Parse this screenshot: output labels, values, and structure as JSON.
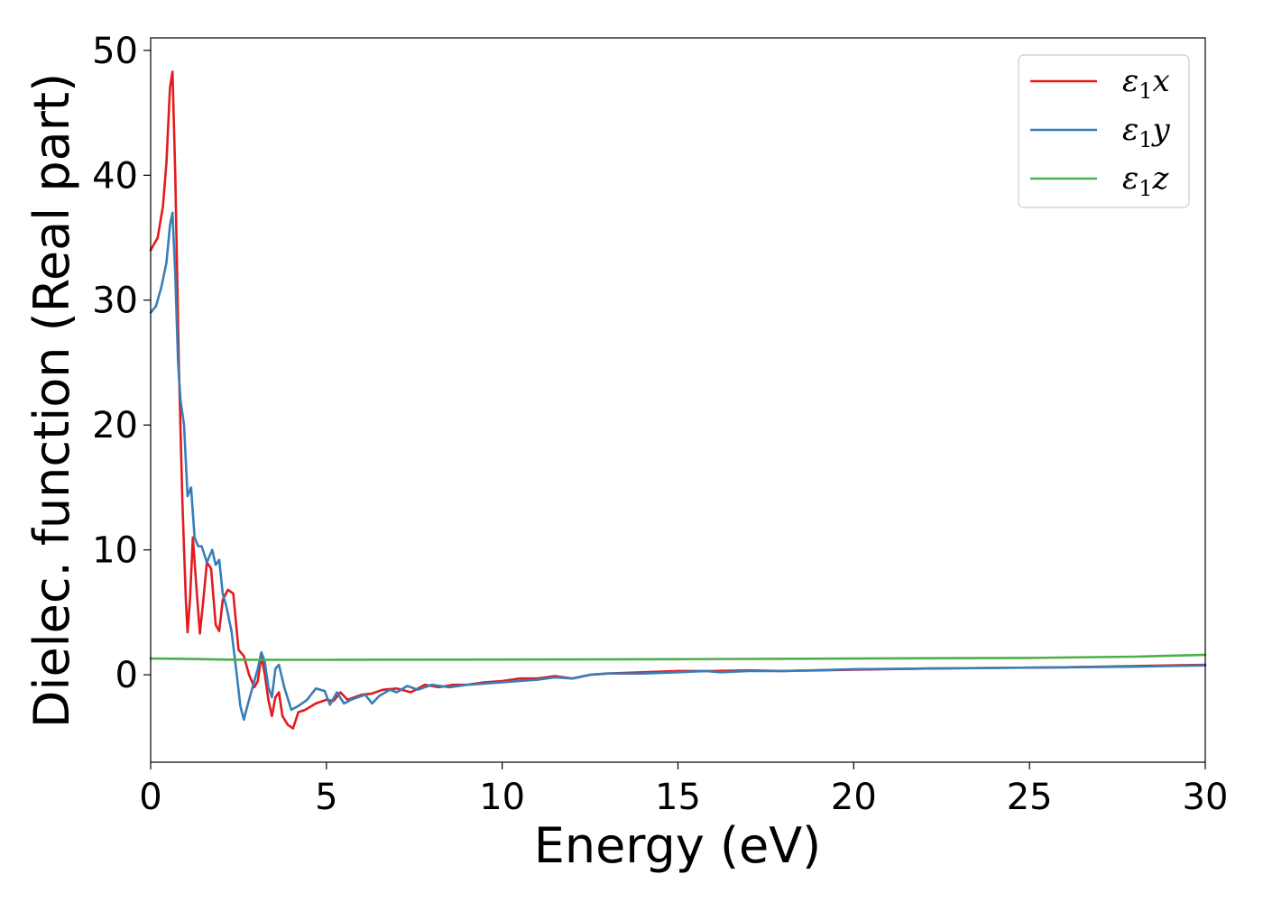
{
  "chart_data": {
    "type": "line",
    "title": "",
    "xlabel": "Energy (eV)",
    "ylabel": "Dielec. function (Real part)",
    "xlim": [
      0,
      30
    ],
    "ylim": [
      -7,
      51
    ],
    "xticks": [
      "0",
      "5",
      "10",
      "15",
      "20",
      "25",
      "30"
    ],
    "yticks": [
      "0",
      "10",
      "20",
      "30",
      "40",
      "50"
    ],
    "grid": false,
    "legend_position": "top-right",
    "series": [
      {
        "name": "ε1x",
        "legend_base": "ε",
        "legend_sub": "1",
        "legend_var": "x",
        "color": "#e41a1c",
        "x": [
          0,
          0.2,
          0.35,
          0.45,
          0.55,
          0.62,
          0.7,
          0.8,
          0.9,
          1.0,
          1.05,
          1.12,
          1.2,
          1.3,
          1.4,
          1.5,
          1.6,
          1.72,
          1.85,
          1.95,
          2.05,
          2.2,
          2.35,
          2.5,
          2.65,
          2.8,
          2.95,
          3.05,
          3.15,
          3.25,
          3.35,
          3.45,
          3.55,
          3.65,
          3.75,
          3.9,
          4.05,
          4.2,
          4.4,
          4.7,
          5.0,
          5.2,
          5.4,
          5.6,
          5.8,
          6.0,
          6.3,
          6.6,
          7.0,
          7.4,
          7.8,
          8.2,
          8.6,
          9.0,
          9.5,
          10.0,
          10.5,
          11.0,
          11.5,
          12.0,
          12.5,
          13.0,
          14.0,
          15.0,
          16.0,
          17.0,
          18.0,
          20.0,
          22.0,
          24.0,
          26.0,
          28.0,
          30.0
        ],
        "values": [
          34,
          35,
          37.5,
          41,
          47,
          48.3,
          40,
          25,
          14,
          6,
          3.4,
          6,
          11,
          7,
          3.3,
          6,
          9,
          8.5,
          4,
          3.5,
          6,
          6.8,
          6.5,
          2,
          1.5,
          0,
          -1,
          -0.5,
          1.5,
          0,
          -2,
          -3.3,
          -1.8,
          -1.4,
          -3.3,
          -4,
          -4.3,
          -3,
          -2.8,
          -2.3,
          -2,
          -2.1,
          -1.4,
          -2,
          -1.8,
          -1.6,
          -1.5,
          -1.2,
          -1.1,
          -1.4,
          -0.8,
          -1,
          -0.8,
          -0.8,
          -0.6,
          -0.5,
          -0.3,
          -0.3,
          -0.1,
          -0.3,
          0,
          0.1,
          0.2,
          0.3,
          0.3,
          0.35,
          0.3,
          0.4,
          0.5,
          0.55,
          0.6,
          0.7,
          0.8
        ]
      },
      {
        "name": "ε1y",
        "legend_base": "ε",
        "legend_sub": "1",
        "legend_var": "y",
        "color": "#377eb8",
        "x": [
          0,
          0.15,
          0.3,
          0.45,
          0.55,
          0.62,
          0.7,
          0.78,
          0.85,
          0.95,
          1.05,
          1.15,
          1.25,
          1.35,
          1.45,
          1.6,
          1.75,
          1.85,
          1.95,
          2.05,
          2.15,
          2.3,
          2.45,
          2.55,
          2.65,
          2.75,
          2.9,
          3.05,
          3.15,
          3.25,
          3.35,
          3.45,
          3.55,
          3.65,
          3.8,
          4.0,
          4.2,
          4.45,
          4.7,
          4.95,
          5.1,
          5.3,
          5.5,
          5.7,
          5.9,
          6.1,
          6.3,
          6.5,
          6.8,
          7.0,
          7.3,
          7.6,
          8.0,
          8.5,
          9.0,
          9.5,
          10.0,
          10.5,
          11.0,
          11.5,
          12.0,
          12.5,
          13.0,
          14.0,
          15.0,
          15.8,
          16.2,
          17.0,
          18.0,
          20.0,
          22.0,
          24.0,
          26.0,
          28.0,
          30.0
        ],
        "values": [
          29,
          29.5,
          31,
          33,
          36,
          37,
          32,
          25,
          22,
          20,
          14.3,
          15,
          11,
          10.3,
          10.3,
          9,
          10,
          8.8,
          9.2,
          6.5,
          5.5,
          3.5,
          0,
          -2.5,
          -3.6,
          -2.5,
          -1,
          0.5,
          1.8,
          1,
          -1,
          -1.8,
          0.5,
          0.8,
          -1,
          -2.8,
          -2.5,
          -2,
          -1.1,
          -1.3,
          -2.4,
          -1.4,
          -2.3,
          -2,
          -1.8,
          -1.6,
          -2.3,
          -1.7,
          -1.2,
          -1.4,
          -0.9,
          -1.2,
          -0.8,
          -1,
          -0.8,
          -0.7,
          -0.6,
          -0.5,
          -0.4,
          -0.2,
          -0.3,
          0,
          0.1,
          0.1,
          0.2,
          0.3,
          0.2,
          0.3,
          0.3,
          0.45,
          0.5,
          0.55,
          0.6,
          0.65,
          0.75
        ]
      },
      {
        "name": "ε1z",
        "legend_base": "ε",
        "legend_sub": "1",
        "legend_var": "z",
        "color": "#4daf4a",
        "x": [
          0,
          1,
          2,
          3,
          5,
          10,
          15,
          20,
          25,
          28,
          30
        ],
        "values": [
          1.3,
          1.28,
          1.22,
          1.2,
          1.2,
          1.22,
          1.25,
          1.3,
          1.35,
          1.45,
          1.6
        ]
      }
    ]
  }
}
